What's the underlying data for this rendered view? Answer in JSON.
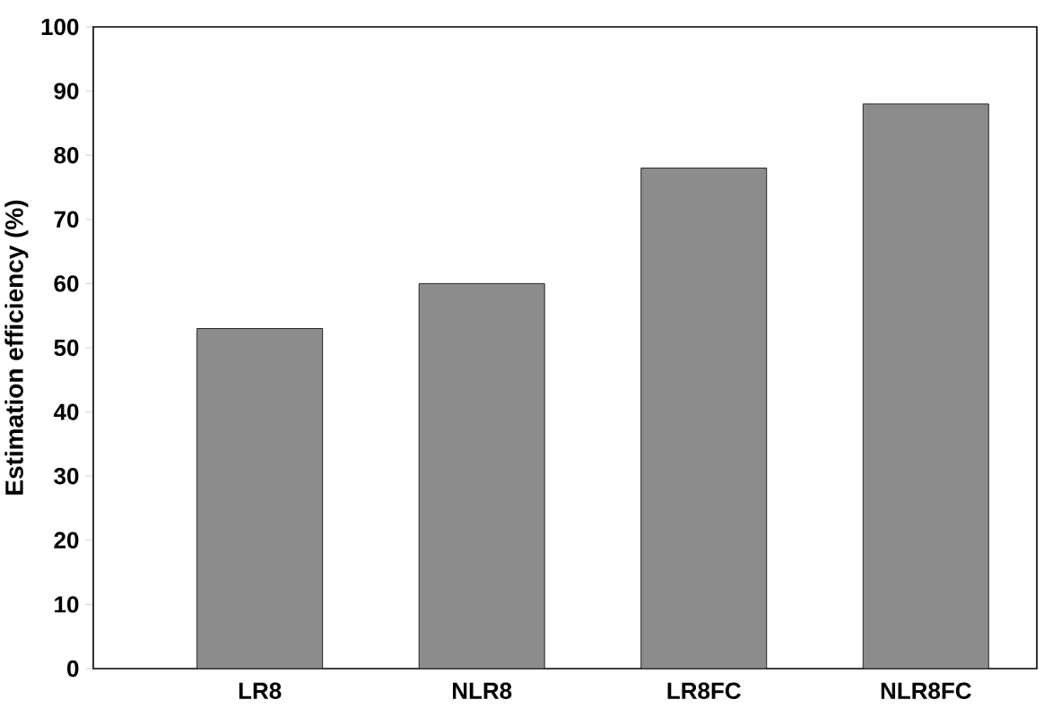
{
  "chart_data": {
    "type": "bar",
    "ylabel": "Estimation efficiency (%)",
    "categories": [
      "LR8",
      "NLR8",
      "LR8FC",
      "NLR8FC"
    ],
    "values": [
      53,
      60,
      78,
      88
    ],
    "color": "#8c8c8c",
    "ylim": [
      0,
      100
    ],
    "yticks": [
      0,
      10,
      20,
      30,
      40,
      50,
      60,
      70,
      80,
      90,
      100
    ],
    "grid": false
  }
}
